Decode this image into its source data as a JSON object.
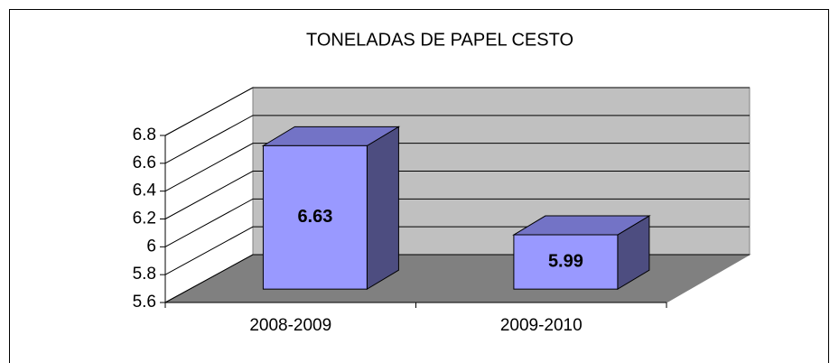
{
  "chart_data": {
    "type": "bar3d",
    "title": "TONELADAS DE PAPEL CESTO",
    "categories": [
      "2008-2009",
      "2009-2010"
    ],
    "values": [
      6.63,
      5.99
    ],
    "color": "#9999ff",
    "ylim": [
      5.6,
      6.8
    ],
    "yticks": [
      5.6,
      5.8,
      6,
      6.2,
      6.4,
      6.6,
      6.8
    ],
    "grid": true
  }
}
